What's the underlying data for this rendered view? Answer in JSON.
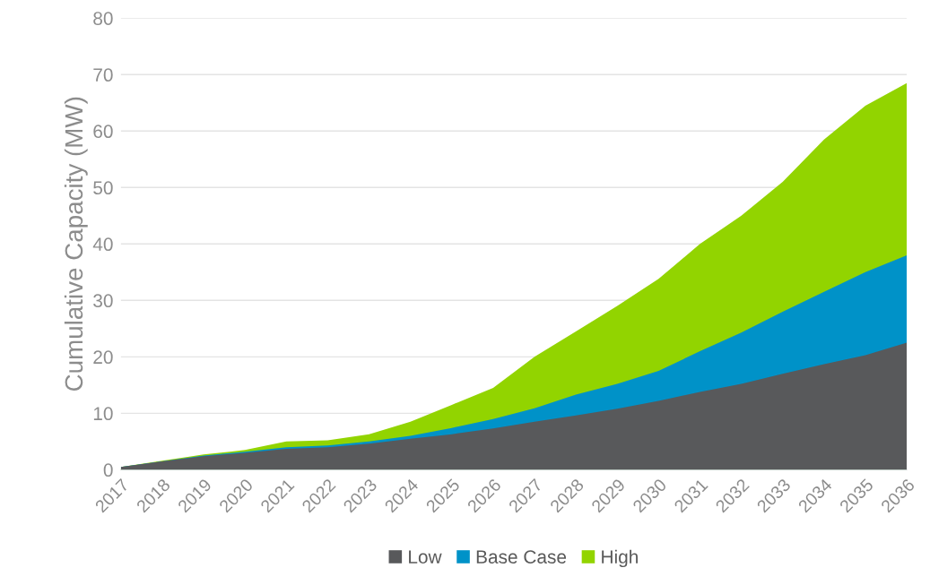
{
  "chart_data": {
    "type": "area",
    "ylabel": "Cumulative Capacity (MW)",
    "categories": [
      "2017",
      "2018",
      "2019",
      "2020",
      "2021",
      "2022",
      "2023",
      "2024",
      "2025",
      "2026",
      "2027",
      "2028",
      "2029",
      "2030",
      "2031",
      "2032",
      "2033",
      "2034",
      "2035",
      "2036"
    ],
    "series": [
      {
        "name": "Low",
        "color": "#58595b",
        "values": [
          0.5,
          1.5,
          2.4,
          3.0,
          3.7,
          4.0,
          4.6,
          5.5,
          6.3,
          7.3,
          8.5,
          9.6,
          10.8,
          12.2,
          13.8,
          15.2,
          17.0,
          18.7,
          20.3,
          22.5
        ]
      },
      {
        "name": "Base Case",
        "color": "#0092c8",
        "values": [
          0.5,
          1.5,
          2.5,
          3.2,
          4.0,
          4.3,
          5.0,
          6.0,
          7.4,
          9.0,
          10.9,
          13.3,
          15.2,
          17.5,
          21.0,
          24.3,
          28.0,
          31.5,
          35.0,
          38.0
        ]
      },
      {
        "name": "High",
        "color": "#92d400",
        "values": [
          0.5,
          1.6,
          2.7,
          3.5,
          5.0,
          5.2,
          6.3,
          8.5,
          11.5,
          14.5,
          20.0,
          24.5,
          29.0,
          33.8,
          40.0,
          45.0,
          51.0,
          58.5,
          64.5,
          68.5
        ]
      }
    ],
    "ylim": [
      0,
      80
    ],
    "yticks": [
      0,
      10,
      20,
      30,
      40,
      50,
      60,
      70,
      80
    ],
    "grid": "y",
    "legend": "bottom"
  }
}
